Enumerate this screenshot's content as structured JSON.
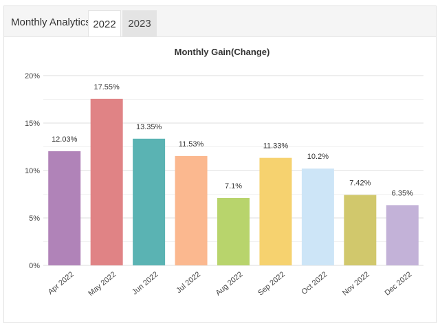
{
  "tabs": {
    "title": "Monthly Analytics",
    "items": [
      "2022",
      "2023"
    ],
    "active": "2022"
  },
  "chart_data": {
    "type": "bar",
    "title": "Monthly Gain(Change)",
    "xlabel": "",
    "ylabel": "",
    "categories": [
      "Apr 2022",
      "May 2022",
      "Jun 2022",
      "Jul 2022",
      "Aug 2022",
      "Sep 2022",
      "Oct 2022",
      "Nov 2022",
      "Dec 2022"
    ],
    "values": [
      12.03,
      17.55,
      13.35,
      11.53,
      7.1,
      11.33,
      10.2,
      7.42,
      6.35
    ],
    "data_labels": [
      "12.03%",
      "17.55%",
      "13.35%",
      "11.53%",
      "7.1%",
      "11.33%",
      "10.2%",
      "7.42%",
      "6.35%"
    ],
    "ylim": [
      0,
      20
    ],
    "yticks": [
      0,
      5,
      10,
      15,
      20
    ],
    "ytick_labels": [
      "0%",
      "5%",
      "10%",
      "15%",
      "20%"
    ],
    "grid": true,
    "colors": [
      "#b083b8",
      "#e08385",
      "#5ab3b3",
      "#fbb88f",
      "#b8d46c",
      "#f6d26f",
      "#cde5f7",
      "#d1c86c",
      "#c3b2d8"
    ]
  }
}
